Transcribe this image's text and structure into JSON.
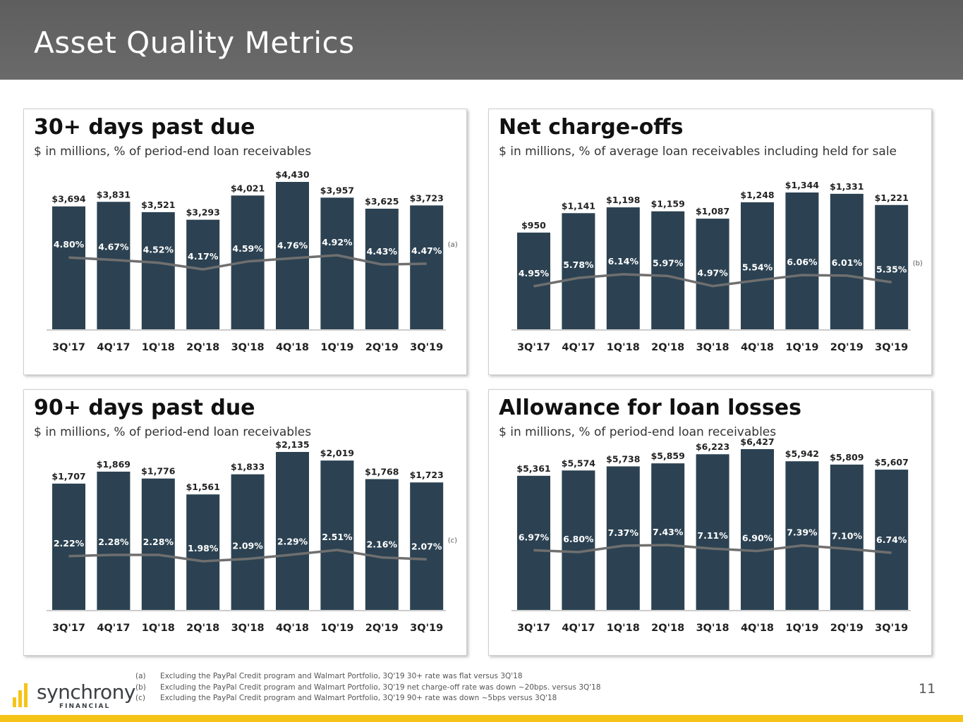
{
  "page": {
    "title": "Asset Quality Metrics",
    "page_number": "11",
    "logo": {
      "name": "synchrony",
      "sub": "FINANCIAL"
    },
    "colors": {
      "bar": "#2c4252",
      "line": "#6f6f6f",
      "header": "#636363",
      "accent": "#f6c418"
    }
  },
  "footnotes": [
    {
      "label": "(a)",
      "text": "Excluding the PayPal Credit program and Walmart Portfolio, 3Q'19 30+ rate was flat versus 3Q'18"
    },
    {
      "label": "(b)",
      "text": "Excluding the PayPal Credit program and Walmart Portfolio, 3Q'19 net charge-off rate was down ~20bps. versus 3Q'18"
    },
    {
      "label": "(c)",
      "text": "Excluding the PayPal Credit program and Walmart Portfolio, 3Q'19 90+ rate was down ~5bps versus 3Q'18"
    }
  ],
  "chart_data": [
    {
      "type": "bar",
      "title": "30+ days past due",
      "subtitle": "$ in millions, % of period-end loan receivables",
      "categories": [
        "3Q'17",
        "4Q'17",
        "1Q'18",
        "2Q'18",
        "3Q'18",
        "4Q'18",
        "1Q'19",
        "2Q'19",
        "3Q'19"
      ],
      "series": [
        {
          "name": "Amount",
          "type": "bar",
          "values": [
            3694,
            3831,
            3521,
            3293,
            4021,
            4430,
            3957,
            3625,
            3723
          ],
          "labels": [
            "$3,694",
            "$3,831",
            "$3,521",
            "$3,293",
            "$4,021",
            "$4,430",
            "$3,957",
            "$3,625",
            "$3,723"
          ]
        },
        {
          "name": "Rate",
          "type": "line",
          "values": [
            4.8,
            4.67,
            4.52,
            4.17,
            4.59,
            4.76,
            4.92,
            4.43,
            4.47
          ],
          "labels": [
            "4.80%",
            "4.67%",
            "4.52%",
            "4.17%",
            "4.59%",
            "4.76%",
            "4.92%",
            "4.43%",
            "4.47%"
          ]
        }
      ],
      "note": "(a)"
    },
    {
      "type": "bar",
      "title": "Net charge-offs",
      "subtitle": "$ in millions, % of average loan receivables including held for sale",
      "categories": [
        "3Q'17",
        "4Q'17",
        "1Q'18",
        "2Q'18",
        "3Q'18",
        "4Q'18",
        "1Q'19",
        "2Q'19",
        "3Q'19"
      ],
      "series": [
        {
          "name": "Amount",
          "type": "bar",
          "values": [
            950,
            1141,
            1198,
            1159,
            1087,
            1248,
            1344,
            1331,
            1221
          ],
          "labels": [
            "$950",
            "$1,141",
            "$1,198",
            "$1,159",
            "$1,087",
            "$1,248",
            "$1,344",
            "$1,331",
            "$1,221"
          ]
        },
        {
          "name": "Rate",
          "type": "line",
          "values": [
            4.95,
            5.78,
            6.14,
            5.97,
            4.97,
            5.54,
            6.06,
            6.01,
            5.35
          ],
          "labels": [
            "4.95%",
            "5.78%",
            "6.14%",
            "5.97%",
            "4.97%",
            "5.54%",
            "6.06%",
            "6.01%",
            "5.35%"
          ]
        }
      ],
      "note": "(b)"
    },
    {
      "type": "bar",
      "title": "90+ days past due",
      "subtitle": "$ in millions, % of period-end loan receivables",
      "categories": [
        "3Q'17",
        "4Q'17",
        "1Q'18",
        "2Q'18",
        "3Q'18",
        "4Q'18",
        "1Q'19",
        "2Q'19",
        "3Q'19"
      ],
      "series": [
        {
          "name": "Amount",
          "type": "bar",
          "values": [
            1707,
            1869,
            1776,
            1561,
            1833,
            2135,
            2019,
            1768,
            1723
          ],
          "labels": [
            "$1,707",
            "$1,869",
            "$1,776",
            "$1,561",
            "$1,833",
            "$2,135",
            "$2,019",
            "$1,768",
            "$1,723"
          ]
        },
        {
          "name": "Rate",
          "type": "line",
          "values": [
            2.22,
            2.28,
            2.28,
            1.98,
            2.09,
            2.29,
            2.51,
            2.16,
            2.07
          ],
          "labels": [
            "2.22%",
            "2.28%",
            "2.28%",
            "1.98%",
            "2.09%",
            "2.29%",
            "2.51%",
            "2.16%",
            "2.07%"
          ]
        }
      ],
      "note": "(c)"
    },
    {
      "type": "bar",
      "title": "Allowance for loan losses",
      "subtitle": "$ in millions, % of period-end loan receivables",
      "categories": [
        "3Q'17",
        "4Q'17",
        "1Q'18",
        "2Q'18",
        "3Q'18",
        "4Q'18",
        "1Q'19",
        "2Q'19",
        "3Q'19"
      ],
      "series": [
        {
          "name": "Amount",
          "type": "bar",
          "values": [
            5361,
            5574,
            5738,
            5859,
            6223,
            6427,
            5942,
            5809,
            5607
          ],
          "labels": [
            "$5,361",
            "$5,574",
            "$5,738",
            "$5,859",
            "$6,223",
            "$6,427",
            "$5,942",
            "$5,809",
            "$5,607"
          ]
        },
        {
          "name": "Rate",
          "type": "line",
          "values": [
            6.97,
            6.8,
            7.37,
            7.43,
            7.11,
            6.9,
            7.39,
            7.1,
            6.74
          ],
          "labels": [
            "6.97%",
            "6.80%",
            "7.37%",
            "7.43%",
            "7.11%",
            "6.90%",
            "7.39%",
            "7.10%",
            "6.74%"
          ]
        }
      ],
      "note": ""
    }
  ]
}
